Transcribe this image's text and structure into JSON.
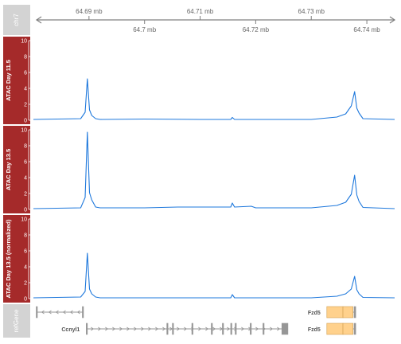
{
  "colors": {
    "track_label_bg": "#a52a2a",
    "axis_label_bg": "#d3d3d3",
    "signal": "#1e78dc",
    "gene_fill": "#ffd18c",
    "gene_stroke": "#d2a050",
    "intron": "#969696",
    "axis": "#808080"
  },
  "chart_data": {
    "type": "line",
    "description_free": true,
    "axis": {
      "label": "chr7",
      "x_range_mb": [
        64.68,
        64.745
      ],
      "ticks_top": [
        "64.69 mb",
        "64.71 mb",
        "64.73 mb"
      ],
      "ticks_top_values": [
        64.69,
        64.71,
        64.73
      ],
      "ticks_bottom": [
        "64.7 mb",
        "64.72 mb",
        "64.74 mb"
      ],
      "ticks_bottom_values": [
        64.7,
        64.72,
        64.74
      ]
    },
    "tracks": [
      {
        "label": "ATAC Day 11.5",
        "ylim": [
          0,
          10
        ],
        "yticks": [
          "0",
          "2",
          "4",
          "6",
          "8",
          "10"
        ],
        "x": [
          64.68,
          64.6885,
          64.6893,
          64.6897,
          64.6901,
          64.6905,
          64.6912,
          64.692,
          64.7,
          64.71,
          64.7155,
          64.7158,
          64.7162,
          64.72,
          64.73,
          64.7346,
          64.7362,
          64.7372,
          64.7378,
          64.7382,
          64.7386,
          64.7393,
          64.745
        ],
        "y": [
          0.1,
          0.2,
          1.0,
          5.2,
          1.3,
          0.6,
          0.2,
          0.1,
          0.15,
          0.1,
          0.1,
          0.35,
          0.1,
          0.1,
          0.1,
          0.4,
          0.8,
          1.8,
          3.6,
          1.5,
          0.9,
          0.2,
          0.1
        ]
      },
      {
        "label": "ATAC Day 13.5",
        "ylim": [
          0,
          10
        ],
        "yticks": [
          "0",
          "2",
          "4",
          "6",
          "8",
          "10"
        ],
        "x": [
          64.68,
          64.6885,
          64.6893,
          64.6897,
          64.6901,
          64.6905,
          64.6912,
          64.692,
          64.7,
          64.706,
          64.7102,
          64.7155,
          64.7158,
          64.7162,
          64.7192,
          64.72,
          64.73,
          64.7346,
          64.7362,
          64.7372,
          64.7378,
          64.7382,
          64.7386,
          64.7393,
          64.745
        ],
        "y": [
          0.1,
          0.2,
          1.5,
          9.7,
          2.1,
          1.2,
          0.3,
          0.2,
          0.2,
          0.3,
          0.3,
          0.3,
          0.8,
          0.3,
          0.4,
          0.2,
          0.2,
          0.5,
          0.9,
          1.9,
          4.3,
          1.8,
          1.0,
          0.25,
          0.1
        ]
      },
      {
        "label": "ATAC Day 13.5 (normalized)",
        "ylim": [
          0,
          10
        ],
        "yticks": [
          "0",
          "2",
          "4",
          "6",
          "8",
          "10"
        ],
        "x": [
          64.68,
          64.6885,
          64.6893,
          64.6897,
          64.6901,
          64.6905,
          64.6912,
          64.692,
          64.7,
          64.71,
          64.7155,
          64.7158,
          64.7162,
          64.72,
          64.73,
          64.7346,
          64.7362,
          64.7372,
          64.7378,
          64.7382,
          64.7386,
          64.7393,
          64.745
        ],
        "y": [
          0.1,
          0.2,
          0.9,
          5.7,
          1.2,
          0.6,
          0.2,
          0.1,
          0.1,
          0.1,
          0.1,
          0.5,
          0.1,
          0.1,
          0.1,
          0.3,
          0.6,
          1.2,
          2.8,
          1.1,
          0.6,
          0.15,
          0.1
        ]
      }
    ],
    "gene_track": {
      "label": "refGene",
      "genes": [
        {
          "name": "",
          "strand": "-",
          "start": 64.6805,
          "end": 64.689,
          "exons": [
            [
              64.6805,
              64.6807
            ],
            [
              64.6888,
              64.689
            ]
          ],
          "row": 1
        },
        {
          "name": "Ccnyl1",
          "strand": "+",
          "start": 64.6895,
          "end": 64.7258,
          "exons": [
            [
              64.6895,
              64.6897
            ],
            [
              64.704,
              64.7042
            ],
            [
              64.705,
              64.7052
            ],
            [
              64.7085,
              64.7087
            ],
            [
              64.712,
              64.7122
            ],
            [
              64.714,
              64.7142
            ],
            [
              64.7155,
              64.7157
            ],
            [
              64.7163,
              64.7165
            ],
            [
              64.719,
              64.7192
            ],
            [
              64.7213,
              64.7215
            ],
            [
              64.7247,
              64.7258
            ]
          ],
          "row": 2
        },
        {
          "name": "Fzd5",
          "strand": "-",
          "start": 64.7328,
          "end": 64.738,
          "exons": [
            [
              64.7328,
              64.7357
            ],
            [
              64.7357,
              64.7375
            ],
            [
              64.7377,
              64.738
            ]
          ],
          "row": 1
        },
        {
          "name": "Fzd5",
          "strand": "-",
          "start": 64.7328,
          "end": 64.738,
          "exons": [
            [
              64.7328,
              64.7357
            ],
            [
              64.7357,
              64.7375
            ],
            [
              64.7377,
              64.738
            ]
          ],
          "row": 2
        }
      ]
    }
  }
}
